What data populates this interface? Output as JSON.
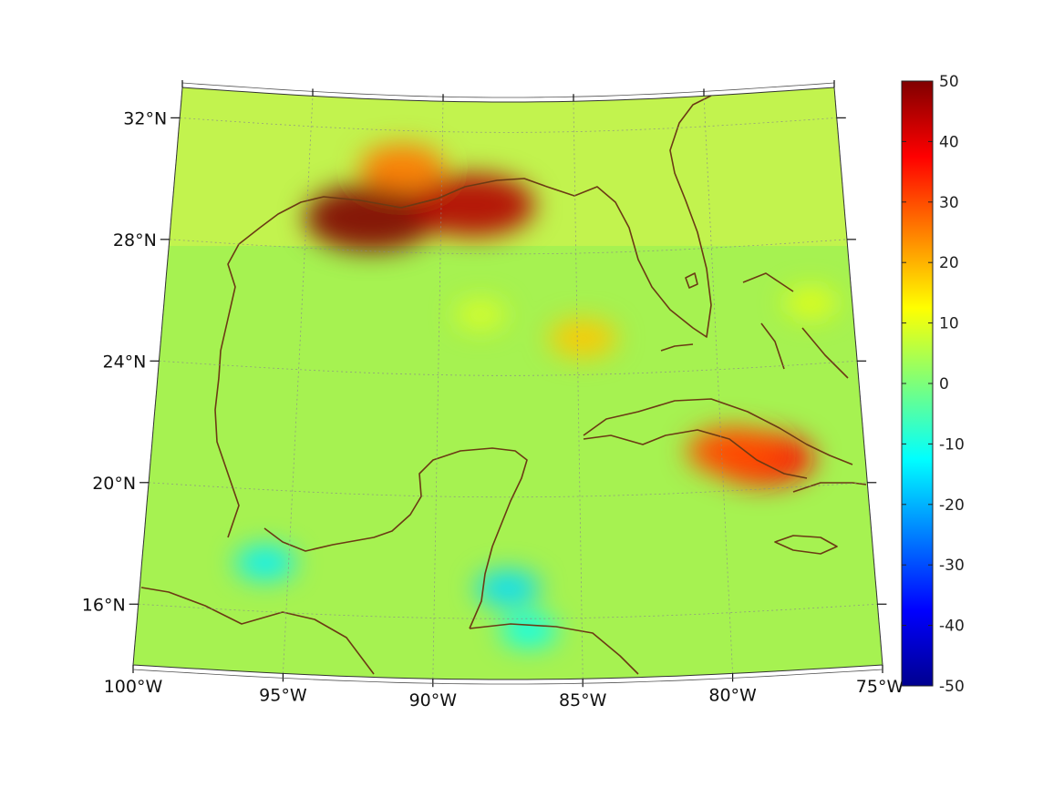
{
  "map": {
    "projection": "conic",
    "region": "Gulf of Mexico and Caribbean",
    "lon_range": [
      -100,
      -75
    ],
    "lat_range": [
      14,
      33
    ],
    "colormap": "jet",
    "land_outline_color": "#6b3a14",
    "grid": "dotted",
    "lon_ticks": [
      {
        "value": -100,
        "label": "100°W"
      },
      {
        "value": -95,
        "label": "95°W"
      },
      {
        "value": -90,
        "label": "90°W"
      },
      {
        "value": -85,
        "label": "85°W"
      },
      {
        "value": -80,
        "label": "80°W"
      },
      {
        "value": -75,
        "label": "75°W"
      }
    ],
    "lat_ticks": [
      {
        "value": 32,
        "label": "32°N"
      },
      {
        "value": 28,
        "label": "28°N"
      },
      {
        "value": 24,
        "label": "24°N"
      },
      {
        "value": 20,
        "label": "20°N"
      },
      {
        "value": 16,
        "label": "16°N"
      }
    ],
    "hotspots": [
      {
        "lon": -92.6,
        "lat": 29.1,
        "value": 50
      },
      {
        "lon": -88.8,
        "lat": 29.6,
        "value": 45
      },
      {
        "lon": -91.5,
        "lat": 30.8,
        "value": 26
      },
      {
        "lon": -78.6,
        "lat": 21.0,
        "value": 36
      },
      {
        "lon": -79.6,
        "lat": 21.3,
        "value": 30
      },
      {
        "lon": -84.8,
        "lat": 25.2,
        "value": 18
      },
      {
        "lon": -95.8,
        "lat": 17.6,
        "value": -14
      },
      {
        "lon": -87.5,
        "lat": 17.0,
        "value": -16
      },
      {
        "lon": -86.8,
        "lat": 15.6,
        "value": -12
      },
      {
        "lon": -88.5,
        "lat": 26.0,
        "value": 9
      },
      {
        "lon": -76.5,
        "lat": 26.0,
        "value": 10
      }
    ]
  },
  "colorbar": {
    "min": -50,
    "max": 50,
    "ticks": [
      {
        "value": 50,
        "label": "50"
      },
      {
        "value": 40,
        "label": "40"
      },
      {
        "value": 30,
        "label": "30"
      },
      {
        "value": 20,
        "label": "20"
      },
      {
        "value": 10,
        "label": "10"
      },
      {
        "value": 0,
        "label": "0"
      },
      {
        "value": -10,
        "label": "-10"
      },
      {
        "value": -20,
        "label": "-20"
      },
      {
        "value": -30,
        "label": "-30"
      },
      {
        "value": -40,
        "label": "-40"
      },
      {
        "value": -50,
        "label": "-50"
      }
    ]
  }
}
